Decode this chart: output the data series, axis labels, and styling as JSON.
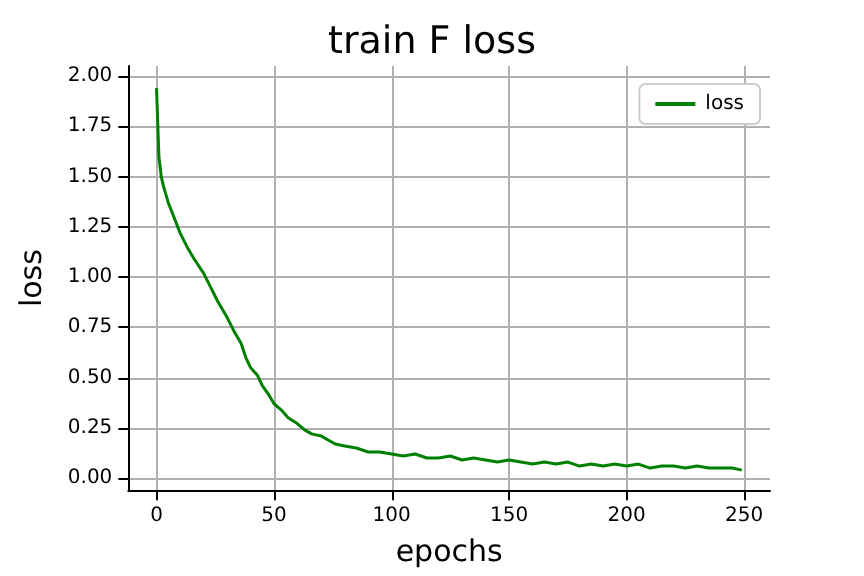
{
  "chart_data": {
    "type": "line",
    "title": "train F loss",
    "xlabel": "epochs",
    "ylabel": "loss",
    "x": [
      0,
      1,
      2,
      3,
      5,
      8,
      10,
      13,
      16,
      20,
      23,
      26,
      30,
      33,
      36,
      38,
      40,
      43,
      45,
      48,
      50,
      53,
      56,
      60,
      63,
      66,
      70,
      73,
      76,
      80,
      85,
      90,
      95,
      100,
      105,
      110,
      115,
      120,
      125,
      130,
      135,
      140,
      145,
      150,
      155,
      160,
      165,
      170,
      175,
      180,
      185,
      190,
      195,
      200,
      205,
      210,
      215,
      220,
      225,
      230,
      235,
      240,
      245,
      249
    ],
    "series": [
      {
        "name": "loss",
        "color": "#008000",
        "values": [
          1.94,
          1.6,
          1.5,
          1.45,
          1.37,
          1.28,
          1.22,
          1.15,
          1.09,
          1.02,
          0.95,
          0.88,
          0.8,
          0.73,
          0.67,
          0.6,
          0.55,
          0.51,
          0.46,
          0.41,
          0.37,
          0.34,
          0.3,
          0.27,
          0.24,
          0.22,
          0.21,
          0.19,
          0.17,
          0.16,
          0.15,
          0.13,
          0.13,
          0.12,
          0.11,
          0.12,
          0.1,
          0.1,
          0.11,
          0.09,
          0.1,
          0.09,
          0.08,
          0.09,
          0.08,
          0.07,
          0.08,
          0.07,
          0.08,
          0.06,
          0.07,
          0.06,
          0.07,
          0.06,
          0.07,
          0.05,
          0.06,
          0.06,
          0.05,
          0.06,
          0.05,
          0.05,
          0.05,
          0.04
        ]
      }
    ],
    "xlim": [
      -12,
      261
    ],
    "ylim": [
      -0.06,
      2.05
    ],
    "xticks": [
      0,
      50,
      100,
      150,
      200,
      250
    ],
    "yticks": [
      {
        "value": 0,
        "label": "0.00"
      },
      {
        "value": 0.25,
        "label": "0.25"
      },
      {
        "value": 0.5,
        "label": "0.50"
      },
      {
        "value": 0.75,
        "label": "0.75"
      },
      {
        "value": 1,
        "label": "1.00"
      },
      {
        "value": 1.25,
        "label": "1.25"
      },
      {
        "value": 1.5,
        "label": "1.50"
      },
      {
        "value": 1.75,
        "label": "1.75"
      },
      {
        "value": 2,
        "label": "2.00"
      }
    ],
    "grid": true,
    "legend": "top right",
    "marker": "none",
    "line_style": "solid"
  }
}
